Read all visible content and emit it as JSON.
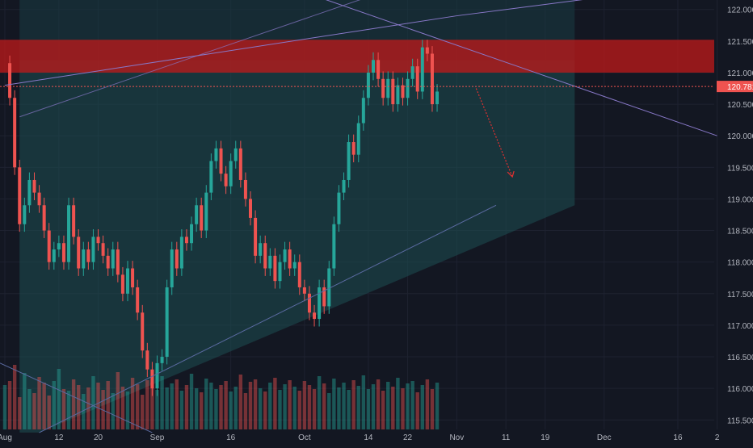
{
  "chart_data": {
    "type": "candlestick",
    "symbol_price_label": "120.781",
    "last_price": 120.781,
    "y_ticks": [
      "122.000",
      "121.500",
      "121.000",
      "120.500",
      "120.000",
      "119.500",
      "119.000",
      "118.500",
      "118.000",
      "117.500",
      "117.000",
      "116.500",
      "116.000",
      "115.500"
    ],
    "y_tick_values": [
      122.0,
      121.5,
      121.0,
      120.5,
      120.0,
      119.5,
      119.0,
      118.5,
      118.0,
      117.5,
      117.0,
      116.5,
      116.0,
      115.5
    ],
    "x_ticks": [
      {
        "label": "Aug",
        "day": 0
      },
      {
        "label": "12",
        "day": 11
      },
      {
        "label": "20",
        "day": 19
      },
      {
        "label": "Sep",
        "day": 31
      },
      {
        "label": "16",
        "day": 46
      },
      {
        "label": "Oct",
        "day": 61
      },
      {
        "label": "14",
        "day": 74
      },
      {
        "label": "22",
        "day": 82
      },
      {
        "label": "Nov",
        "day": 92
      },
      {
        "label": "11",
        "day": 102
      },
      {
        "label": "19",
        "day": 110
      },
      {
        "label": "Dec",
        "day": 122
      },
      {
        "label": "16",
        "day": 137
      },
      {
        "label": "2",
        "day": 145
      }
    ],
    "price_path": [
      [
        0,
        121.15
      ],
      [
        1,
        120.6
      ],
      [
        2,
        119.5
      ],
      [
        3,
        118.6
      ],
      [
        4,
        118.9
      ],
      [
        5,
        119.3
      ],
      [
        6,
        119.1
      ],
      [
        7,
        118.9
      ],
      [
        8,
        118.5
      ],
      [
        9,
        118.0
      ],
      [
        10,
        118.2
      ],
      [
        11,
        118.3
      ],
      [
        12,
        118.0
      ],
      [
        13,
        118.9
      ],
      [
        14,
        118.4
      ],
      [
        15,
        117.9
      ],
      [
        16,
        118.2
      ],
      [
        17,
        118.0
      ],
      [
        18,
        118.4
      ],
      [
        19,
        118.3
      ],
      [
        20,
        118.1
      ],
      [
        21,
        117.9
      ],
      [
        22,
        118.2
      ],
      [
        23,
        117.8
      ],
      [
        24,
        117.5
      ],
      [
        25,
        117.9
      ],
      [
        26,
        117.6
      ],
      [
        27,
        117.2
      ],
      [
        28,
        116.6
      ],
      [
        29,
        116.3
      ],
      [
        30,
        116.0
      ],
      [
        31,
        116.4
      ],
      [
        32,
        116.5
      ],
      [
        33,
        117.6
      ],
      [
        34,
        118.2
      ],
      [
        35,
        117.9
      ],
      [
        36,
        118.4
      ],
      [
        37,
        118.3
      ],
      [
        38,
        118.6
      ],
      [
        39,
        118.9
      ],
      [
        40,
        118.5
      ],
      [
        41,
        119.1
      ],
      [
        42,
        119.6
      ],
      [
        43,
        119.8
      ],
      [
        44,
        119.4
      ],
      [
        45,
        119.2
      ],
      [
        46,
        119.6
      ],
      [
        47,
        119.8
      ],
      [
        48,
        119.3
      ],
      [
        49,
        119.0
      ],
      [
        50,
        118.7
      ],
      [
        51,
        118.1
      ],
      [
        52,
        118.3
      ],
      [
        53,
        117.9
      ],
      [
        54,
        118.1
      ],
      [
        55,
        117.7
      ],
      [
        56,
        118.0
      ],
      [
        57,
        118.2
      ],
      [
        58,
        117.9
      ],
      [
        59,
        118.0
      ],
      [
        60,
        117.6
      ],
      [
        61,
        117.5
      ],
      [
        62,
        117.2
      ],
      [
        63,
        117.1
      ],
      [
        64,
        117.6
      ],
      [
        65,
        117.3
      ],
      [
        66,
        117.9
      ],
      [
        67,
        118.6
      ],
      [
        68,
        119.1
      ],
      [
        69,
        119.3
      ],
      [
        70,
        119.9
      ],
      [
        71,
        119.7
      ],
      [
        72,
        120.2
      ],
      [
        73,
        120.6
      ],
      [
        74,
        121.0
      ],
      [
        75,
        121.2
      ],
      [
        76,
        120.9
      ],
      [
        77,
        120.6
      ],
      [
        78,
        120.9
      ],
      [
        79,
        120.5
      ],
      [
        80,
        120.8
      ],
      [
        81,
        120.6
      ],
      [
        82,
        120.9
      ],
      [
        83,
        121.1
      ],
      [
        84,
        120.7
      ],
      [
        85,
        121.4
      ],
      [
        86,
        121.3
      ],
      [
        87,
        120.5
      ],
      [
        88,
        120.7
      ]
    ],
    "volume_profile": [
      55,
      60,
      80,
      40,
      70,
      50,
      45,
      65,
      58,
      42,
      60,
      75,
      50,
      48,
      62,
      55,
      44,
      52,
      66,
      58,
      49,
      60,
      45,
      71,
      53,
      47,
      64,
      56,
      43,
      61,
      58,
      49,
      66,
      52,
      57,
      62,
      48,
      55,
      69,
      51,
      46,
      63,
      58,
      50,
      55,
      60,
      47,
      53,
      68,
      45,
      59,
      62,
      51,
      47,
      58,
      64,
      49,
      56,
      61,
      53,
      48,
      60,
      55,
      50,
      66,
      57,
      45,
      63,
      52,
      58,
      49,
      61,
      54,
      67,
      50,
      56,
      62,
      48,
      59,
      53,
      64,
      51,
      57,
      60,
      46,
      55,
      62,
      50,
      58
    ]
  },
  "drawings": {
    "resistance_zone": {
      "top": 121.52,
      "bottom": 121.0,
      "color": "#c01a1a"
    },
    "channel_upper_line": [
      [
        0,
        120.8
      ],
      [
        92,
        121.9
      ]
    ],
    "channel_lower_boundary": [
      [
        7,
        115.3
      ],
      [
        100,
        118.9
      ]
    ],
    "descending_line": [
      [
        60,
        122.3
      ],
      [
        145,
        120.0
      ]
    ],
    "projection_arrow": {
      "from": [
        92,
        120.75
      ],
      "to": [
        102,
        119.35
      ],
      "color": "#e03030"
    }
  },
  "colors": {
    "background": "#131722",
    "up_candle": "#26a69a",
    "down_candle": "#ef5350",
    "axis_text": "#b2b5be",
    "price_tag": "#ef5350"
  }
}
